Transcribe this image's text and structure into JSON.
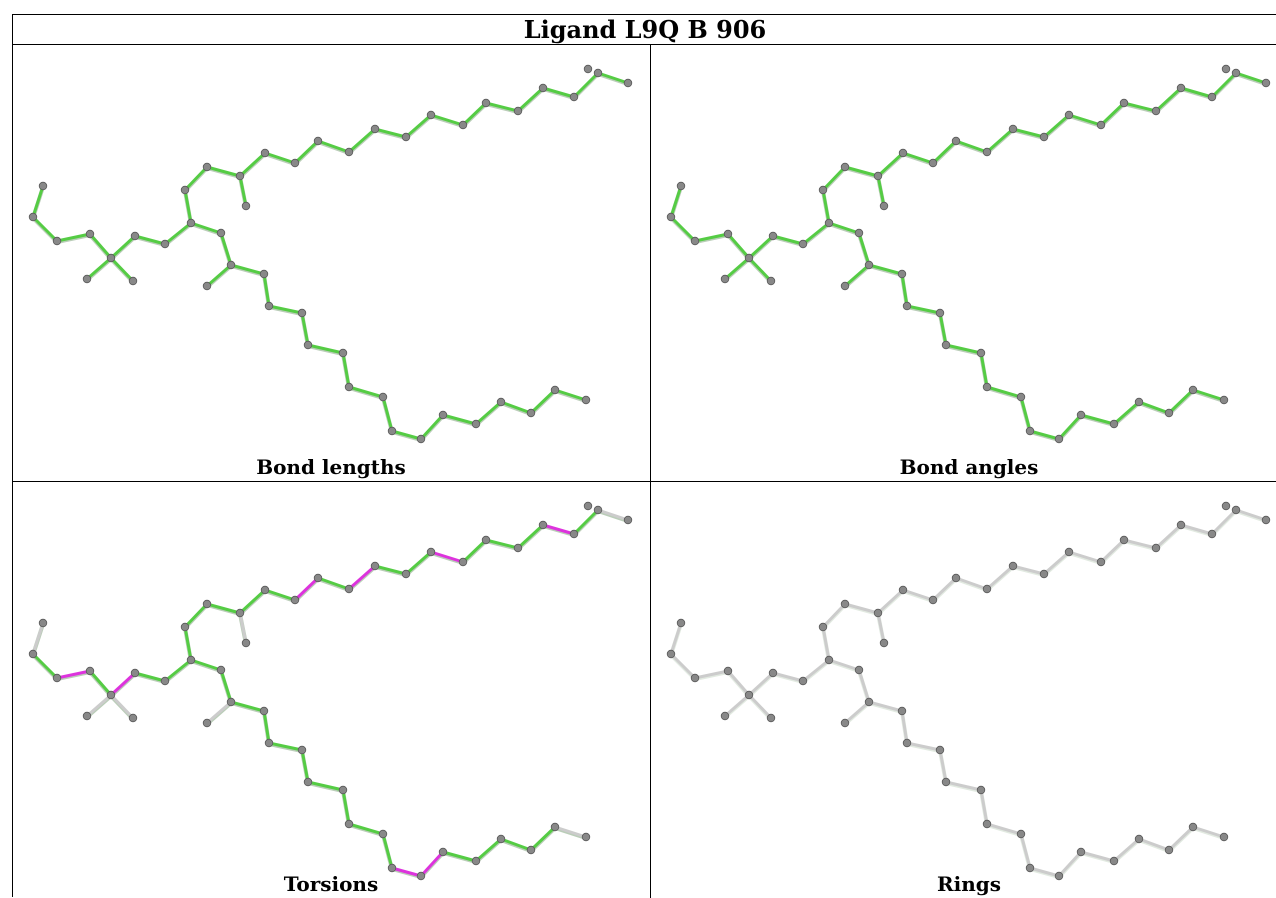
{
  "title": "Ligand L9Q B 906",
  "colors": {
    "ok": "#55cc44",
    "outlier": "#dd33dd",
    "none": "#cccccc",
    "atom": "#888888"
  },
  "panels": [
    {
      "id": "bond-lengths",
      "label": "Bond lengths"
    },
    {
      "id": "bond-angles",
      "label": "Bond angles"
    },
    {
      "id": "torsions",
      "label": "Torsions"
    },
    {
      "id": "rings",
      "label": "Rings"
    }
  ]
}
